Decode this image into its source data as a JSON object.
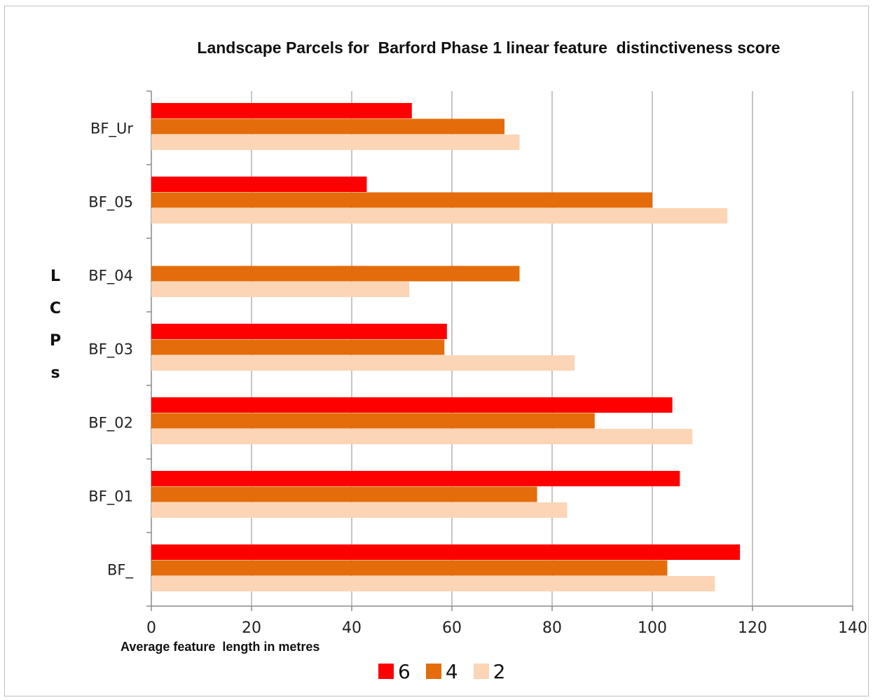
{
  "chart_data": {
    "type": "bar",
    "orientation": "horizontal",
    "title": "Landscape Parcels for  Barford Phase 1 linear feature  distinctiveness score",
    "xlabel": "Average feature  length in metres",
    "ylabel": "LCPs",
    "xlim": [
      0,
      140
    ],
    "xticks": [
      0,
      20,
      40,
      60,
      80,
      100,
      120,
      140
    ],
    "grid": "vertical",
    "legend_position": "bottom",
    "categories": [
      "BF_Ur",
      "BF_05",
      "BF_04",
      "BF_03",
      "BF_02",
      "BF_01",
      "BF_"
    ],
    "series": [
      {
        "name": "6",
        "color": "#ff0000",
        "values": [
          52,
          43,
          null,
          59,
          104,
          105.5,
          117.5
        ]
      },
      {
        "name": "4",
        "color": "#e46c0a",
        "values": [
          70.5,
          100,
          73.5,
          58.5,
          88.5,
          77,
          103
        ]
      },
      {
        "name": "2",
        "color": "#fbd5b5",
        "values": [
          73.5,
          115,
          51.5,
          84.5,
          108,
          83,
          112.5
        ]
      }
    ]
  }
}
